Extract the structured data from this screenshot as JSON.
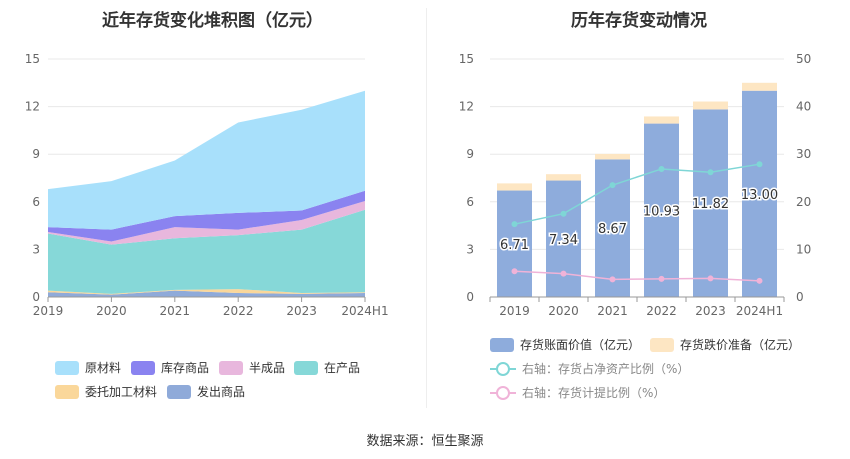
{
  "left": {
    "title": "近年存货变化堆积图（亿元）",
    "legend": [
      {
        "name": "原材料",
        "color": "#a8e0fb"
      },
      {
        "name": "库存商品",
        "color": "#8a83f0"
      },
      {
        "name": "半成品",
        "color": "#e8b7dd"
      },
      {
        "name": "在产品",
        "color": "#86d8d8"
      },
      {
        "name": "委托加工材料",
        "color": "#fad79a"
      },
      {
        "name": "发出商品",
        "color": "#8faad9"
      }
    ]
  },
  "right": {
    "title": "历年存货变动情况",
    "legend": [
      {
        "name": "存货账面价值（亿元）",
        "color": "#8eacdc"
      },
      {
        "name": "存货跌价准备（亿元）",
        "color": "#fde6c3"
      },
      {
        "name": "右轴：存货占净资产比例（%）",
        "color": "#7fd6d6"
      },
      {
        "name": "右轴：存货计提比例（%）",
        "color": "#f0b3d8"
      }
    ]
  },
  "source": "数据来源：恒生聚源",
  "chart_data": [
    {
      "type": "area",
      "title": "近年存货变化堆积图（亿元）",
      "categories": [
        "2019",
        "2020",
        "2021",
        "2022",
        "2023",
        "2024H1"
      ],
      "ylim": [
        0,
        15
      ],
      "yticks": [
        0,
        3,
        6,
        9,
        12,
        15
      ],
      "stacked": true,
      "grid": true,
      "legend_position": "bottom",
      "series": [
        {
          "name": "发出商品",
          "color": "#8faad9",
          "values": [
            0.3,
            0.15,
            0.4,
            0.25,
            0.2,
            0.25
          ]
        },
        {
          "name": "委托加工材料",
          "color": "#fad79a",
          "values": [
            0.1,
            0.05,
            0.05,
            0.25,
            0.05,
            0.05
          ]
        },
        {
          "name": "在产品",
          "color": "#86d8d8",
          "values": [
            3.6,
            3.1,
            3.25,
            3.4,
            4.0,
            5.2
          ]
        },
        {
          "name": "半成品",
          "color": "#e8b7dd",
          "values": [
            0.1,
            0.2,
            0.7,
            0.35,
            0.6,
            0.55
          ]
        },
        {
          "name": "库存商品",
          "color": "#8a83f0",
          "values": [
            0.3,
            0.75,
            0.7,
            1.05,
            0.6,
            0.65
          ]
        },
        {
          "name": "原材料",
          "color": "#a8e0fb",
          "values": [
            2.4,
            3.05,
            3.5,
            5.7,
            6.35,
            6.3
          ]
        }
      ]
    },
    {
      "type": "bar",
      "title": "历年存货变动情况",
      "categories": [
        "2019",
        "2020",
        "2021",
        "2022",
        "2023",
        "2024H1"
      ],
      "ylim": [
        0,
        15
      ],
      "yticks": [
        0,
        3,
        6,
        9,
        12,
        15
      ],
      "y2lim": [
        0,
        50
      ],
      "y2ticks": [
        0,
        10,
        20,
        30,
        40,
        50
      ],
      "stacked": true,
      "grid": true,
      "legend_position": "bottom",
      "series": [
        {
          "name": "存货账面价值（亿元）",
          "axis": "left",
          "kind": "bar",
          "color": "#8eacdc",
          "values": [
            6.71,
            7.34,
            8.67,
            10.93,
            11.82,
            13.0
          ],
          "labels": [
            "6.71",
            "7.34",
            "8.67",
            "10.93",
            "11.82",
            "13.00"
          ]
        },
        {
          "name": "存货跌价准备（亿元）",
          "axis": "left",
          "kind": "bar",
          "color": "#fde6c3",
          "values": [
            0.45,
            0.4,
            0.35,
            0.45,
            0.5,
            0.5
          ]
        },
        {
          "name": "右轴：存货占净资产比例（%）",
          "axis": "right",
          "kind": "line",
          "color": "#7fd6d6",
          "values": [
            15.3,
            17.5,
            23.5,
            26.9,
            26.2,
            27.9
          ]
        },
        {
          "name": "右轴：存货计提比例（%）",
          "axis": "right",
          "kind": "line",
          "color": "#f0b3d8",
          "values": [
            5.4,
            4.9,
            3.7,
            3.8,
            3.9,
            3.4
          ]
        }
      ]
    }
  ]
}
